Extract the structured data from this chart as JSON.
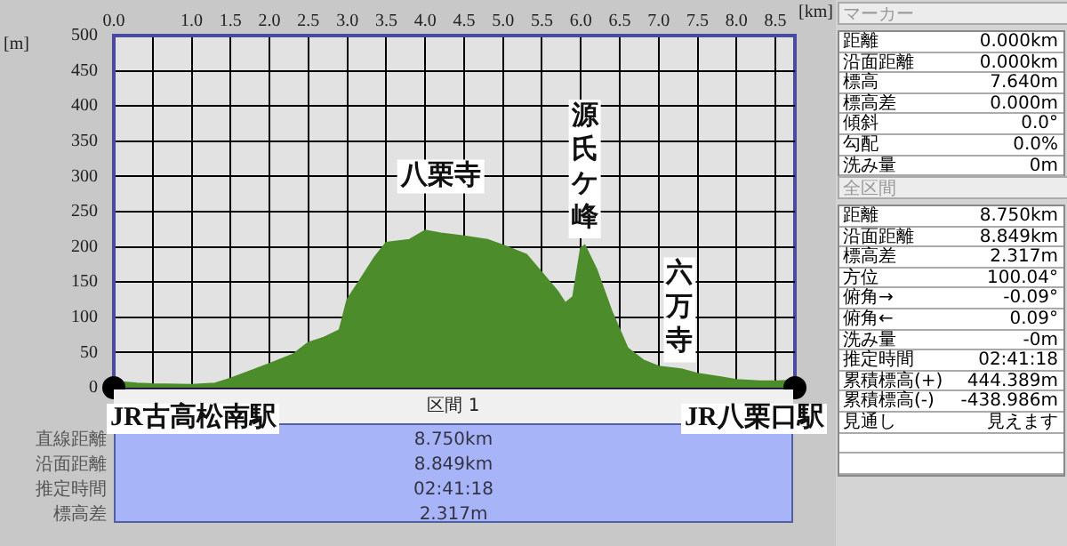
{
  "chart_data": {
    "type": "area",
    "xlabel": "[km]",
    "ylabel": "[m]",
    "xlim": [
      0,
      8.75
    ],
    "ylim": [
      0,
      500
    ],
    "xticks": [
      {
        "value": 0,
        "label": "0.0"
      },
      {
        "value": 0.5,
        "label": null
      },
      {
        "value": 1,
        "label": "1.0"
      },
      1.5,
      {
        "value": 2,
        "label": "2.0"
      },
      2.5,
      {
        "value": 3,
        "label": "3.0"
      },
      3.5,
      {
        "value": 4,
        "label": "4.0"
      },
      4.5,
      {
        "value": 5,
        "label": "5.0"
      },
      5.5,
      {
        "value": 6,
        "label": "6.0"
      },
      6.5,
      {
        "value": 7,
        "label": "7.0"
      },
      7.5,
      {
        "value": 8,
        "label": "8.0"
      },
      8.5
    ],
    "yticks": [
      0,
      50,
      100,
      150,
      200,
      250,
      300,
      350,
      400,
      450,
      500
    ],
    "grid": true,
    "legend": false,
    "series": [
      {
        "color": "#4d8c2a",
        "marker": "none",
        "x": [
          0,
          0.3,
          0.5,
          1,
          1.3,
          1.5,
          2,
          2.3,
          2.5,
          2.7,
          2.9,
          3,
          3.2,
          3.35,
          3.5,
          3.8,
          4,
          4.2,
          4.5,
          4.8,
          5,
          5.3,
          5.5,
          5.7,
          5.8,
          5.9,
          6,
          6.05,
          6.2,
          6.4,
          6.6,
          6.8,
          7,
          7.3,
          7.5,
          7.8,
          8,
          8.3,
          8.5,
          8.75
        ],
        "values": [
          9,
          6,
          5,
          4,
          6,
          13,
          34,
          47,
          64,
          71,
          82,
          125,
          159,
          185,
          206,
          210,
          223,
          219,
          215,
          210,
          202,
          189,
          163,
          137,
          120,
          129,
          198,
          202,
          168,
          107,
          56,
          39,
          30,
          26,
          20,
          15,
          11,
          9,
          9,
          10
        ]
      },
      {
        "type": "scatter",
        "color": "#000000",
        "marker": "circle",
        "x": [
          0,
          8.75
        ],
        "values": [
          0,
          0
        ]
      }
    ],
    "annotations": [
      {
        "text": "八栗寺",
        "x": 4.2,
        "y": 223
      },
      {
        "text": "源氏ケ峰",
        "x": 6.05,
        "y": 202
      },
      {
        "text": "六万寺",
        "x": 7.27,
        "y": 26
      },
      {
        "text": "JR古高松南駅",
        "x": 0,
        "y": 0
      },
      {
        "text": "JR八栗口駅",
        "x": 8.75,
        "y": 0
      },
      "区間 1",
      "直線距離",
      "沿面距離",
      "推定時間",
      "標高差",
      "8.750km",
      "8.849km",
      "02:41:18",
      "2.317m",
      "マーカー",
      "距離",
      "0.000km",
      "沿面距離",
      "0.000km",
      "標高",
      "7.640m",
      "標高差",
      "0.000m",
      "傾斜",
      "0.0°",
      "勾配",
      "0.0%",
      "洗み量",
      "0m",
      "全区間",
      "距離",
      "8.750km",
      "沿面距離",
      "8.849km",
      "標高差",
      "2.317m",
      "方位",
      "100.04°",
      "俯角→",
      "-0.09°",
      "俯角←",
      "0.09°",
      "洗み量",
      "-0m",
      "推定時間",
      "02:41:18",
      "累積標高(+)",
      "444.389m",
      "累積標高(-)",
      "-438.986m",
      "見通し",
      "見えます"
    ]
  }
}
